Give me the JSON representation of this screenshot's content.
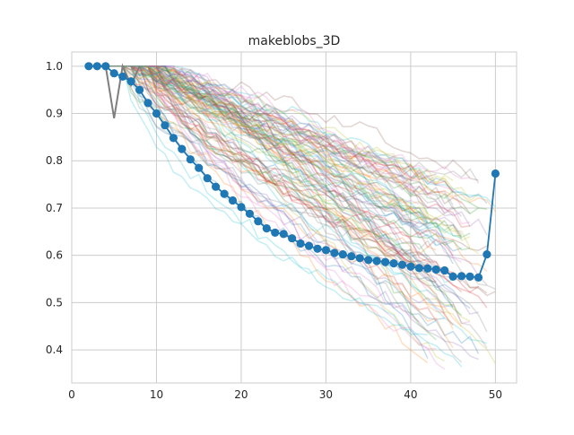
{
  "chart_data": {
    "type": "line",
    "title": "makeblobs_3D",
    "xlabel": "",
    "ylabel": "",
    "xlim": [
      0,
      52.5
    ],
    "ylim": [
      0.33,
      1.03
    ],
    "xticks": [
      0,
      10,
      20,
      30,
      40,
      50
    ],
    "yticks": [
      0.4,
      0.5,
      0.6,
      0.7,
      0.8,
      0.9,
      1.0
    ],
    "xtick_labels": [
      "0",
      "10",
      "20",
      "30",
      "40",
      "50"
    ],
    "ytick_labels": [
      "0.4",
      "0.5",
      "0.6",
      "0.7",
      "0.8",
      "0.9",
      "1.0"
    ],
    "grid": true,
    "legend": "none",
    "background_runs": {
      "count": 100,
      "alpha": 0.25,
      "x_start": 2,
      "x_end_range": [
        41,
        50
      ],
      "final_value_range": [
        0.36,
        0.78
      ],
      "colors": [
        "#1f77b4",
        "#ff7f0e",
        "#2ca02c",
        "#d62728",
        "#9467bd",
        "#8c564b",
        "#e377c2",
        "#7f7f7f",
        "#bcbd22",
        "#17becf"
      ]
    },
    "highlight_grey_line": {
      "color": "#7f7f7f",
      "x": [
        2,
        3,
        4,
        5,
        6,
        7,
        8
      ],
      "y": [
        1.0,
        1.0,
        1.0,
        0.89,
        1.0,
        0.96,
        1.0
      ]
    },
    "series": [
      {
        "color": "#1f77b4",
        "marker": "circle",
        "x": [
          2,
          3,
          4,
          5,
          6,
          7,
          8,
          9,
          10,
          11,
          12,
          13,
          14,
          15,
          16,
          17,
          18,
          19,
          20,
          21,
          22,
          23,
          24,
          25,
          26,
          27,
          28,
          29,
          30,
          31,
          32,
          33,
          34,
          35,
          36,
          37,
          38,
          39,
          40,
          41,
          42,
          43,
          44,
          45,
          46,
          47,
          48,
          49,
          50
        ],
        "values": [
          1.0,
          1.0,
          1.0,
          0.985,
          0.978,
          0.968,
          0.95,
          0.922,
          0.9,
          0.875,
          0.848,
          0.825,
          0.803,
          0.785,
          0.763,
          0.745,
          0.73,
          0.716,
          0.702,
          0.688,
          0.672,
          0.657,
          0.648,
          0.645,
          0.636,
          0.625,
          0.62,
          0.614,
          0.611,
          0.605,
          0.602,
          0.598,
          0.594,
          0.59,
          0.588,
          0.586,
          0.583,
          0.58,
          0.576,
          0.573,
          0.572,
          0.57,
          0.568,
          0.555,
          0.556,
          0.555,
          0.553,
          0.602,
          0.773
        ]
      }
    ]
  }
}
